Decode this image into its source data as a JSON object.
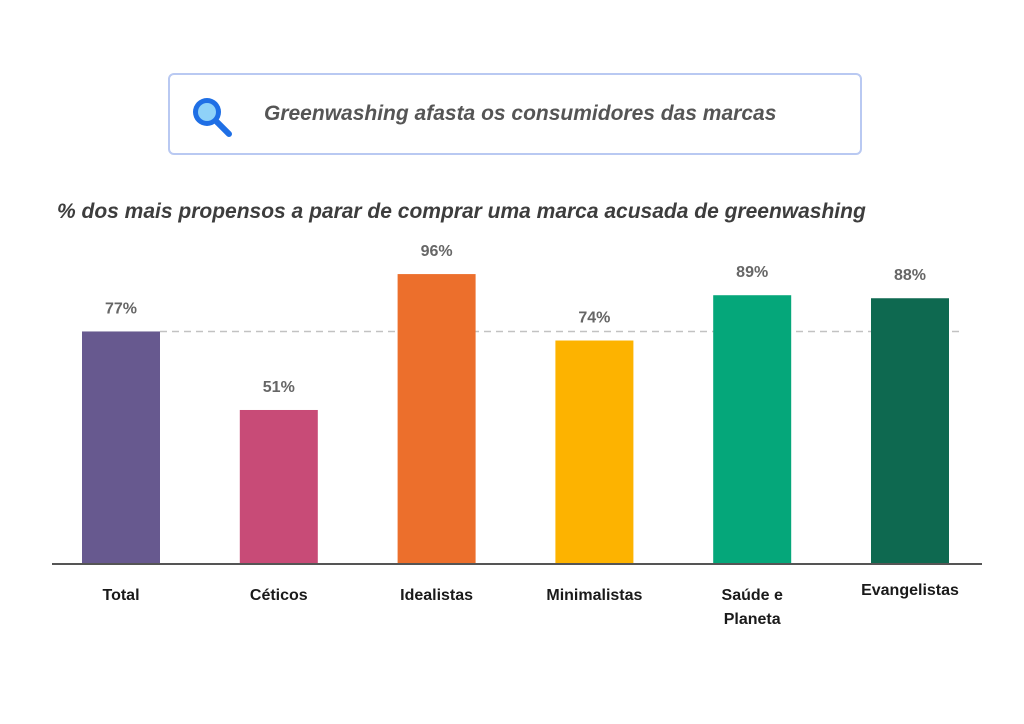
{
  "header": {
    "headline": "Greenwashing afasta os consumidores das marcas",
    "icon": "search-icon"
  },
  "colors": {
    "Total": "#67598f",
    "Céticos": "#c84b77",
    "Idealistas": "#ec6f2c",
    "Minimalistas": "#fdb300",
    "Saúde e Planeta": "#05a77a",
    "Evangelistas": "#0e6950",
    "reference_line": "#c2c2c2",
    "axis": "#555555"
  },
  "chart_data": {
    "type": "bar",
    "title": "% dos mais propensos a parar de comprar uma marca acusada de greenwashing",
    "categories": [
      "Total",
      "Céticos",
      "Idealistas",
      "Minimalistas",
      "Saúde e Planeta",
      "Evangelistas"
    ],
    "category_lines": [
      [
        "Total"
      ],
      [
        "Céticos"
      ],
      [
        "Idealistas"
      ],
      [
        "Minimalistas"
      ],
      [
        "Saúde e",
        "Planeta"
      ],
      [
        "Evangelistas"
      ]
    ],
    "values": [
      77,
      51,
      96,
      74,
      89,
      88
    ],
    "value_labels": [
      "77%",
      "51%",
      "96%",
      "74%",
      "89%",
      "88%"
    ],
    "reference_line": 77,
    "ylim": [
      0,
      100
    ],
    "grid": false,
    "legend": "none",
    "xlabel": "",
    "ylabel": ""
  }
}
